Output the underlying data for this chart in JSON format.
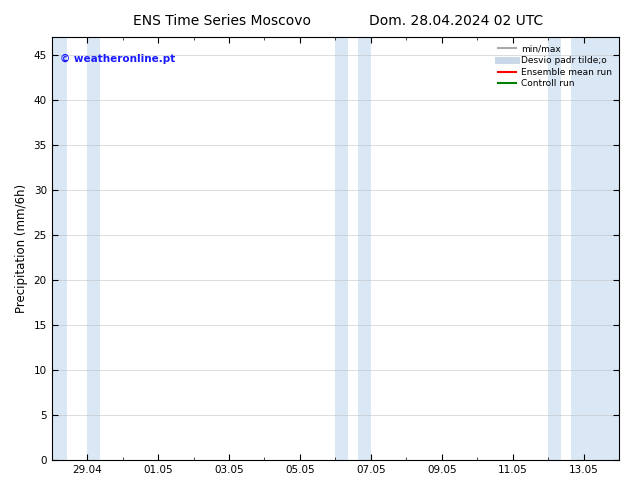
{
  "title_left": "ENS Time Series Moscovo",
  "title_right": "Dom. 28.04.2024 02 UTC",
  "ylabel": "Precipitation (mm/6h)",
  "watermark": "© weatheronline.pt",
  "watermark_color": "#1a1aff",
  "ylim": [
    0,
    47
  ],
  "yticks": [
    0,
    5,
    10,
    15,
    20,
    25,
    30,
    35,
    40,
    45
  ],
  "xtick_labels": [
    "29.04",
    "01.05",
    "03.05",
    "05.05",
    "07.05",
    "09.05",
    "11.05",
    "13.05"
  ],
  "bg_color": "#ffffff",
  "plot_bg_color": "#ffffff",
  "shaded_color": "#dae8f5",
  "shaded_regions": [
    [
      -0.5,
      -0.28
    ],
    [
      0.0,
      0.18
    ],
    [
      3.5,
      3.68
    ],
    [
      3.82,
      4.0
    ],
    [
      6.5,
      6.68
    ],
    [
      6.82,
      7.5
    ]
  ],
  "legend_items": [
    {
      "label": "min/max",
      "color": "#aaaaaa",
      "linewidth": 1.5,
      "linestyle": "-"
    },
    {
      "label": "Desvio padr tilde;o",
      "color": "#c8d8e8",
      "linewidth": 5,
      "linestyle": "-"
    },
    {
      "label": "Ensemble mean run",
      "color": "#ff0000",
      "linewidth": 1.5,
      "linestyle": "-"
    },
    {
      "label": "Controll run",
      "color": "#008000",
      "linewidth": 1.5,
      "linestyle": "-"
    }
  ],
  "title_fontsize": 10,
  "tick_fontsize": 7.5,
  "ylabel_fontsize": 8.5,
  "grid_color": "#bbbbbb",
  "xlim": [
    -0.5,
    7.5
  ]
}
